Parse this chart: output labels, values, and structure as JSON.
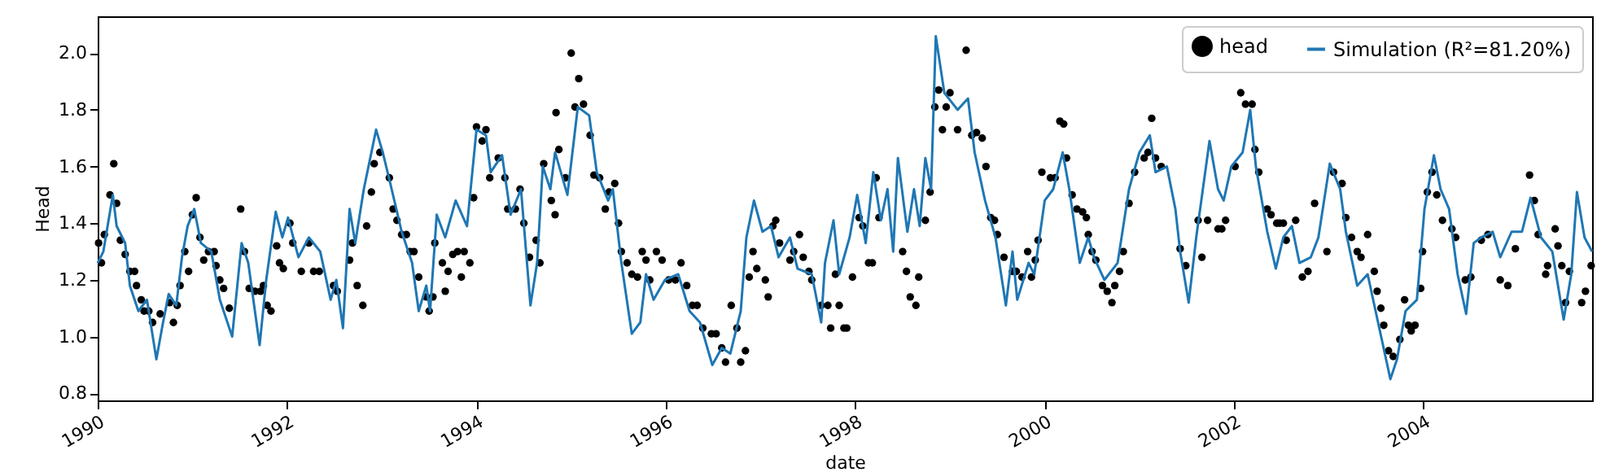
{
  "chart_data": {
    "type": "line",
    "xlabel": "date",
    "ylabel": "Head",
    "xlim": [
      1990,
      2005.78
    ],
    "ylim": [
      0.775,
      2.13
    ],
    "xticks": [
      1990,
      1992,
      1994,
      1996,
      1998,
      2000,
      2002,
      2004
    ],
    "yticks": [
      {
        "value": 0.8,
        "label": "0.8"
      },
      {
        "value": 1.0,
        "label": "1.0"
      },
      1.2,
      1.4,
      1.6,
      1.8,
      {
        "value": 2.0,
        "label": "2.0"
      }
    ],
    "legend": "top right",
    "grid": false,
    "series": [
      {
        "name": "head",
        "type": "scatter",
        "marker": "circle",
        "color": "#000000",
        "x": [
          1990.01,
          1990.04,
          1990.07,
          1990.13,
          1990.17,
          1990.2,
          1990.24,
          1990.29,
          1990.34,
          1990.39,
          1990.41,
          1990.46,
          1990.49,
          1990.54,
          1990.58,
          1990.66,
          1990.76,
          1990.8,
          1990.84,
          1990.87,
          1990.92,
          1990.96,
          1991.0,
          1991.04,
          1991.08,
          1991.12,
          1991.17,
          1991.23,
          1991.25,
          1991.29,
          1991.33,
          1991.39,
          1991.51,
          1991.55,
          1991.6,
          1991.66,
          1991.72,
          1991.75,
          1991.79,
          1991.83,
          1991.89,
          1991.92,
          1991.96,
          1992.03,
          1992.06,
          1992.15,
          1992.23,
          1992.28,
          1992.34,
          1992.49,
          1992.53,
          1992.66,
          1992.69,
          1992.74,
          1992.8,
          1992.84,
          1992.89,
          1992.92,
          1992.98,
          1993.08,
          1993.12,
          1993.16,
          1993.21,
          1993.26,
          1993.3,
          1993.34,
          1993.39,
          1993.47,
          1993.5,
          1993.54,
          1993.56,
          1993.64,
          1993.67,
          1993.7,
          1993.75,
          1993.8,
          1993.84,
          1993.87,
          1993.93,
          1993.97,
          1994.0,
          1994.06,
          1994.1,
          1994.14,
          1994.23,
          1994.3,
          1994.33,
          1994.41,
          1994.46,
          1994.5,
          1994.56,
          1994.63,
          1994.67,
          1994.71,
          1994.79,
          1994.83,
          1994.84,
          1994.87,
          1994.94,
          1995.0,
          1995.04,
          1995.08,
          1995.13,
          1995.2,
          1995.24,
          1995.3,
          1995.36,
          1995.4,
          1995.46,
          1995.5,
          1995.53,
          1995.59,
          1995.64,
          1995.7,
          1995.75,
          1995.79,
          1995.83,
          1995.9,
          1995.96,
          1996.03,
          1996.1,
          1996.16,
          1996.22,
          1996.28,
          1996.33,
          1996.39,
          1996.48,
          1996.53,
          1996.59,
          1996.63,
          1996.69,
          1996.75,
          1996.79,
          1996.84,
          1996.88,
          1996.92,
          1996.96,
          1997.05,
          1997.08,
          1997.13,
          1997.16,
          1997.2,
          1997.31,
          1997.35,
          1997.41,
          1997.45,
          1997.51,
          1997.54,
          1997.64,
          1997.71,
          1997.74,
          1997.79,
          1997.83,
          1997.88,
          1997.91,
          1997.97,
          1998.04,
          1998.08,
          1998.14,
          1998.18,
          1998.22,
          1998.25,
          1998.5,
          1998.54,
          1998.58,
          1998.64,
          1998.67,
          1998.74,
          1998.79,
          1998.84,
          1998.88,
          1998.92,
          1998.96,
          1999.0,
          1999.08,
          1999.17,
          1999.23,
          1999.28,
          1999.34,
          1999.38,
          1999.43,
          1999.47,
          1999.5,
          1999.57,
          1999.66,
          1999.7,
          1999.76,
          1999.82,
          1999.86,
          1999.9,
          1999.93,
          1999.97,
          2000.06,
          2000.11,
          2000.16,
          2000.2,
          2000.23,
          2000.29,
          2000.34,
          2000.4,
          2000.44,
          2000.46,
          2000.5,
          2000.54,
          2000.61,
          2000.66,
          2000.71,
          2000.74,
          2000.79,
          2000.83,
          2000.89,
          2000.95,
          2001.05,
          2001.09,
          2001.13,
          2001.17,
          2001.23,
          2001.43,
          2001.49,
          2001.62,
          2001.66,
          2001.72,
          2001.83,
          2001.87,
          2001.91,
          2002.01,
          2002.07,
          2002.12,
          2002.19,
          2002.22,
          2002.26,
          2002.35,
          2002.39,
          2002.45,
          2002.48,
          2002.52,
          2002.55,
          2002.65,
          2002.72,
          2002.78,
          2002.85,
          2002.98,
          2003.05,
          2003.14,
          2003.18,
          2003.24,
          2003.3,
          2003.34,
          2003.41,
          2003.48,
          2003.51,
          2003.55,
          2003.58,
          2003.63,
          2003.68,
          2003.75,
          2003.8,
          2003.84,
          2003.87,
          2003.91,
          2003.97,
          2003.99,
          2004.04,
          2004.09,
          2004.14,
          2004.2,
          2004.3,
          2004.34,
          2004.44,
          2004.5,
          2004.61,
          2004.68,
          2004.81,
          2004.89,
          2004.97,
          2005.12,
          2005.17,
          2005.21,
          2005.29,
          2005.31,
          2005.39,
          2005.42,
          2005.46,
          2005.5,
          2005.54,
          2005.67,
          2005.71,
          2005.77
        ],
        "values": [
          1.33,
          1.26,
          1.36,
          1.5,
          1.61,
          1.47,
          1.34,
          1.29,
          1.23,
          1.23,
          1.18,
          1.13,
          1.09,
          1.09,
          1.05,
          1.08,
          1.12,
          1.05,
          1.11,
          1.18,
          1.3,
          1.23,
          1.43,
          1.49,
          1.35,
          1.27,
          1.3,
          1.3,
          1.25,
          1.2,
          1.17,
          1.1,
          1.45,
          1.3,
          1.17,
          1.16,
          1.16,
          1.18,
          1.11,
          1.09,
          1.32,
          1.26,
          1.24,
          1.4,
          1.33,
          1.23,
          1.33,
          1.23,
          1.23,
          1.18,
          1.16,
          1.27,
          1.33,
          1.18,
          1.11,
          1.39,
          1.51,
          1.61,
          1.65,
          1.56,
          1.45,
          1.41,
          1.36,
          1.36,
          1.3,
          1.3,
          1.21,
          1.14,
          1.09,
          1.14,
          1.33,
          1.26,
          1.16,
          1.23,
          1.29,
          1.3,
          1.21,
          1.3,
          1.26,
          1.49,
          1.74,
          1.69,
          1.73,
          1.56,
          1.63,
          1.56,
          1.45,
          1.45,
          1.52,
          1.4,
          1.28,
          1.34,
          1.26,
          1.61,
          1.48,
          1.43,
          1.79,
          1.66,
          1.56,
          2.0,
          1.81,
          1.91,
          1.82,
          1.71,
          1.57,
          1.56,
          1.45,
          1.51,
          1.54,
          1.4,
          1.3,
          1.26,
          1.22,
          1.21,
          1.3,
          1.27,
          1.2,
          1.3,
          1.27,
          1.2,
          1.2,
          1.26,
          1.18,
          1.11,
          1.11,
          1.03,
          1.01,
          1.01,
          0.96,
          0.91,
          1.11,
          1.03,
          0.91,
          0.95,
          1.21,
          1.3,
          1.24,
          1.2,
          1.14,
          1.39,
          1.41,
          1.33,
          1.27,
          1.3,
          1.36,
          1.28,
          1.23,
          1.2,
          1.11,
          1.11,
          1.03,
          1.22,
          1.11,
          1.03,
          1.03,
          1.21,
          1.42,
          1.39,
          1.26,
          1.26,
          1.56,
          1.42,
          1.3,
          1.23,
          1.14,
          1.11,
          1.21,
          1.41,
          1.51,
          1.81,
          1.87,
          1.73,
          1.81,
          1.86,
          1.73,
          2.01,
          1.71,
          1.72,
          1.7,
          1.6,
          1.42,
          1.41,
          1.36,
          1.28,
          1.23,
          1.23,
          1.21,
          1.3,
          1.21,
          1.27,
          1.34,
          1.58,
          1.56,
          1.56,
          1.76,
          1.75,
          1.63,
          1.5,
          1.45,
          1.44,
          1.42,
          1.36,
          1.3,
          1.27,
          1.18,
          1.16,
          1.12,
          1.18,
          1.23,
          1.3,
          1.47,
          1.58,
          1.63,
          1.65,
          1.77,
          1.63,
          1.6,
          1.31,
          1.25,
          1.41,
          1.28,
          1.41,
          1.38,
          1.38,
          1.41,
          1.6,
          1.86,
          1.82,
          1.82,
          1.66,
          1.58,
          1.45,
          1.43,
          1.4,
          1.4,
          1.4,
          1.34,
          1.41,
          1.21,
          1.23,
          1.47,
          1.3,
          1.58,
          1.54,
          1.42,
          1.35,
          1.3,
          1.28,
          1.36,
          1.23,
          1.16,
          1.1,
          1.04,
          0.95,
          0.93,
          0.99,
          1.13,
          1.04,
          1.02,
          1.04,
          1.17,
          1.3,
          1.51,
          1.58,
          1.5,
          1.41,
          1.38,
          1.35,
          1.2,
          1.21,
          1.34,
          1.36,
          1.2,
          1.18,
          1.31,
          1.57,
          1.48,
          1.36,
          1.22,
          1.25,
          1.38,
          1.32,
          1.25,
          1.12,
          1.23,
          1.12,
          1.16,
          1.25
        ]
      },
      {
        "name": "Simulation (R²=81.20%)",
        "type": "line",
        "color": "#1f77b4",
        "x": [
          1990.0,
          1990.06,
          1990.16,
          1990.2,
          1990.29,
          1990.34,
          1990.43,
          1990.52,
          1990.62,
          1990.69,
          1990.75,
          1990.83,
          1990.89,
          1990.95,
          1991.02,
          1991.09,
          1991.2,
          1991.29,
          1991.42,
          1991.52,
          1991.59,
          1991.71,
          1991.78,
          1991.88,
          1991.95,
          1992.01,
          1992.12,
          1992.23,
          1992.35,
          1992.46,
          1992.52,
          1992.59,
          1992.66,
          1992.72,
          1992.81,
          1992.94,
          1993.01,
          1993.09,
          1993.21,
          1993.32,
          1993.39,
          1993.47,
          1993.51,
          1993.58,
          1993.67,
          1993.78,
          1993.9,
          1994.0,
          1994.1,
          1994.15,
          1994.27,
          1994.36,
          1994.47,
          1994.57,
          1994.64,
          1994.7,
          1994.78,
          1994.83,
          1994.96,
          1995.07,
          1995.19,
          1995.27,
          1995.39,
          1995.44,
          1995.53,
          1995.64,
          1995.73,
          1995.79,
          1995.87,
          1995.99,
          1996.13,
          1996.25,
          1996.36,
          1996.49,
          1996.59,
          1996.68,
          1996.79,
          1996.85,
          1996.93,
          1997.02,
          1997.11,
          1997.19,
          1997.31,
          1997.39,
          1997.54,
          1997.64,
          1997.68,
          1997.77,
          1997.83,
          1997.94,
          1998.02,
          1998.11,
          1998.19,
          1998.27,
          1998.34,
          1998.4,
          1998.45,
          1998.55,
          1998.62,
          1998.68,
          1998.74,
          1998.8,
          1998.85,
          1998.94,
          1999.08,
          1999.19,
          1999.26,
          1999.37,
          1999.48,
          1999.59,
          1999.66,
          1999.71,
          1999.83,
          1999.89,
          2000.0,
          2000.09,
          2000.19,
          2000.26,
          2000.37,
          2000.46,
          2000.52,
          2000.63,
          2000.77,
          2000.89,
          2001.0,
          2001.11,
          2001.17,
          2001.29,
          2001.38,
          2001.43,
          2001.52,
          2001.6,
          2001.74,
          2001.83,
          2001.89,
          2001.97,
          2002.09,
          2002.17,
          2002.23,
          2002.35,
          2002.44,
          2002.52,
          2002.61,
          2002.69,
          2002.81,
          2002.89,
          2003.01,
          2003.12,
          2003.18,
          2003.3,
          2003.41,
          2003.52,
          2003.65,
          2003.72,
          2003.81,
          2003.93,
          2004.01,
          2004.11,
          2004.18,
          2004.27,
          2004.36,
          2004.45,
          2004.53,
          2004.61,
          2004.73,
          2004.81,
          2004.93,
          2005.04,
          2005.13,
          2005.24,
          2005.36,
          2005.48,
          2005.56,
          2005.62,
          2005.7,
          2005.78
        ],
        "values": [
          1.26,
          1.3,
          1.5,
          1.39,
          1.33,
          1.18,
          1.09,
          1.13,
          0.92,
          1.05,
          1.15,
          1.11,
          1.28,
          1.39,
          1.45,
          1.33,
          1.3,
          1.13,
          1.0,
          1.33,
          1.26,
          0.97,
          1.2,
          1.44,
          1.35,
          1.42,
          1.28,
          1.35,
          1.3,
          1.13,
          1.2,
          1.03,
          1.45,
          1.33,
          1.52,
          1.73,
          1.65,
          1.54,
          1.37,
          1.26,
          1.09,
          1.18,
          1.09,
          1.43,
          1.35,
          1.48,
          1.39,
          1.73,
          1.71,
          1.58,
          1.64,
          1.43,
          1.52,
          1.11,
          1.26,
          1.6,
          1.52,
          1.65,
          1.5,
          1.81,
          1.78,
          1.58,
          1.48,
          1.52,
          1.26,
          1.01,
          1.05,
          1.22,
          1.13,
          1.2,
          1.22,
          1.09,
          1.05,
          0.9,
          0.96,
          0.94,
          1.09,
          1.35,
          1.48,
          1.37,
          1.39,
          1.28,
          1.35,
          1.24,
          1.22,
          1.05,
          1.26,
          1.41,
          1.22,
          1.35,
          1.5,
          1.33,
          1.58,
          1.41,
          1.52,
          1.3,
          1.63,
          1.37,
          1.52,
          1.39,
          1.63,
          1.52,
          2.06,
          1.86,
          1.8,
          1.84,
          1.65,
          1.48,
          1.35,
          1.11,
          1.3,
          1.13,
          1.26,
          1.22,
          1.48,
          1.52,
          1.65,
          1.52,
          1.26,
          1.35,
          1.28,
          1.2,
          1.26,
          1.52,
          1.65,
          1.71,
          1.58,
          1.6,
          1.45,
          1.3,
          1.12,
          1.35,
          1.69,
          1.52,
          1.48,
          1.6,
          1.65,
          1.8,
          1.6,
          1.37,
          1.24,
          1.35,
          1.39,
          1.26,
          1.28,
          1.35,
          1.61,
          1.52,
          1.37,
          1.18,
          1.22,
          1.05,
          0.85,
          0.92,
          1.09,
          1.13,
          1.45,
          1.64,
          1.52,
          1.45,
          1.22,
          1.08,
          1.33,
          1.35,
          1.37,
          1.28,
          1.37,
          1.37,
          1.49,
          1.35,
          1.3,
          1.06,
          1.22,
          1.51,
          1.35,
          1.3
        ]
      }
    ]
  }
}
